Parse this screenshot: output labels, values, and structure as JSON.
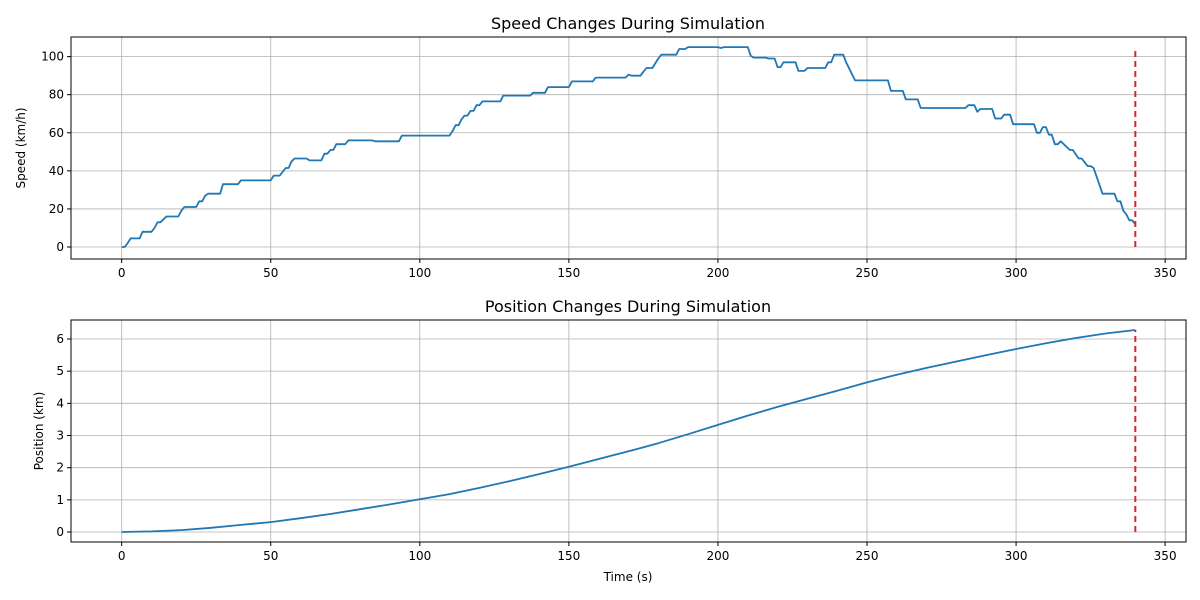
{
  "colors": {
    "line": "#1f77b4",
    "marker": "#d62728",
    "grid": "#b0b0b0",
    "axes": "#000000"
  },
  "chart_data": [
    {
      "type": "line",
      "title": "Speed Changes During Simulation",
      "xlabel": "",
      "ylabel": "Speed (km/h)",
      "xlim": [
        -17,
        357
      ],
      "ylim": [
        -6.3,
        110.3
      ],
      "xticks": [
        0,
        50,
        100,
        150,
        200,
        250,
        300,
        350
      ],
      "yticks": [
        0,
        20,
        40,
        60,
        80,
        100
      ],
      "grid": true,
      "vline_x": 340,
      "vline_range": [
        0,
        105
      ],
      "series": [
        {
          "x": [
            0,
            1,
            2,
            3,
            5,
            6,
            7,
            10,
            11,
            12,
            13,
            15,
            16,
            19,
            20,
            21,
            25,
            26,
            27,
            28,
            29,
            33,
            34,
            39,
            40,
            41,
            50,
            51,
            53,
            54,
            55,
            56,
            57,
            58,
            62,
            63,
            67,
            68,
            69,
            70,
            71,
            72,
            75,
            76,
            84,
            85,
            93,
            94,
            110,
            111,
            112,
            113,
            114,
            115,
            116,
            117,
            118,
            119,
            120,
            121,
            122,
            127,
            128,
            137,
            138,
            142,
            143,
            150,
            151,
            158,
            159,
            169,
            170,
            171,
            174,
            175,
            176,
            178,
            180,
            181,
            186,
            187,
            189,
            190,
            200,
            201,
            202,
            210,
            211,
            212,
            216,
            217,
            219,
            220,
            221,
            222,
            223,
            226,
            227,
            229,
            230,
            236,
            237,
            238,
            239,
            242,
            243,
            246,
            257,
            258,
            262,
            263,
            267,
            268,
            283,
            284,
            286,
            287,
            288,
            292,
            293,
            295,
            296,
            298,
            299,
            306,
            307,
            308,
            309,
            310,
            311,
            312,
            313,
            314,
            315,
            318,
            319,
            321,
            322,
            324,
            325,
            326,
            327,
            328,
            329,
            333,
            334,
            335,
            336,
            337,
            338,
            339,
            340
          ],
          "y": [
            0,
            0,
            2,
            4.5,
            4.5,
            4.5,
            8,
            8,
            10,
            13,
            13,
            16,
            16,
            16,
            19,
            21,
            21,
            24,
            24,
            27,
            28,
            28,
            33,
            33,
            35,
            35,
            35,
            37.5,
            37.5,
            39.5,
            41.5,
            41.5,
            45,
            46.5,
            46.5,
            45.5,
            45.5,
            49,
            49,
            51,
            51,
            54,
            54,
            56,
            56,
            55.5,
            55.5,
            58.5,
            58.5,
            61,
            64,
            64,
            67,
            69,
            69,
            71.5,
            71.5,
            74.5,
            74.5,
            76.5,
            76.5,
            76.5,
            79.5,
            79.5,
            81,
            81,
            84,
            84,
            87,
            87,
            89,
            89,
            90.5,
            90,
            90,
            92,
            94,
            94,
            99,
            101,
            101,
            104,
            104,
            105,
            105,
            104.5,
            105,
            105,
            100.5,
            99.5,
            99.5,
            99,
            99,
            94.5,
            94.5,
            97,
            97,
            97,
            92.5,
            92.5,
            94,
            94,
            97,
            97,
            101,
            101,
            97,
            87.5,
            87.5,
            82,
            82,
            77.5,
            77.5,
            73,
            73,
            74.5,
            74.5,
            71,
            72.5,
            72.5,
            67.5,
            67.5,
            69.5,
            69.5,
            64.5,
            64.5,
            60,
            60,
            63,
            63,
            59,
            59,
            54,
            54,
            55.5,
            51,
            51,
            46.5,
            46.5,
            42.5,
            42.5,
            41.5,
            37,
            32.5,
            28,
            28,
            24,
            24,
            19,
            17,
            14,
            14,
            12
          ]
        }
      ]
    },
    {
      "type": "line",
      "title": "Position Changes During Simulation",
      "xlabel": "Time (s)",
      "ylabel": "Position (km)",
      "xlim": [
        -17,
        357
      ],
      "ylim": [
        -0.31,
        6.59
      ],
      "xticks": [
        0,
        50,
        100,
        150,
        200,
        250,
        300,
        350
      ],
      "yticks": [
        0,
        1,
        2,
        3,
        4,
        5,
        6
      ],
      "grid": true,
      "vline_x": 340,
      "vline_range": [
        0,
        6.28
      ],
      "series": [
        {
          "x": [
            0,
            10,
            20,
            30,
            40,
            50,
            60,
            70,
            80,
            90,
            100,
            110,
            120,
            130,
            140,
            150,
            160,
            170,
            180,
            190,
            200,
            210,
            220,
            230,
            240,
            250,
            260,
            270,
            280,
            290,
            300,
            310,
            320,
            330,
            340
          ],
          "y": [
            0,
            0.02,
            0.06,
            0.13,
            0.22,
            0.31,
            0.43,
            0.56,
            0.71,
            0.86,
            1.02,
            1.18,
            1.37,
            1.58,
            1.8,
            2.03,
            2.27,
            2.51,
            2.76,
            3.04,
            3.33,
            3.62,
            3.89,
            4.14,
            4.39,
            4.65,
            4.89,
            5.1,
            5.3,
            5.5,
            5.69,
            5.87,
            6.03,
            6.17,
            6.28
          ]
        }
      ]
    }
  ]
}
